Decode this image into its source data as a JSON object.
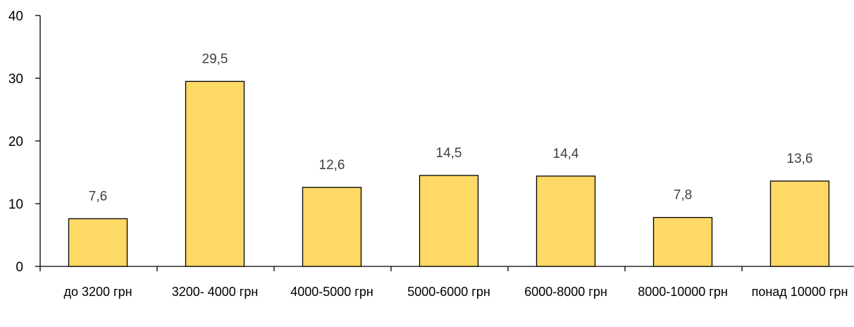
{
  "chart_data": {
    "type": "bar",
    "categories": [
      "до 3200 грн",
      "3200- 4000 грн",
      "4000-5000 грн",
      "5000-6000 грн",
      "6000-8000 грн",
      "8000-10000 грн",
      "понад 10000 грн"
    ],
    "values": [
      7.6,
      29.5,
      12.6,
      14.5,
      14.4,
      7.8,
      13.6
    ],
    "data_labels": [
      "7,6",
      "29,5",
      "12,6",
      "14,5",
      "14,4",
      "7,8",
      "13,6"
    ],
    "y_ticks": [
      "0",
      "10",
      "20",
      "30",
      "40"
    ],
    "ylim": [
      0,
      40
    ],
    "title": "",
    "xlabel": "",
    "ylabel": "",
    "grid": false,
    "legend": "none",
    "bar_color": "#FFD966"
  }
}
